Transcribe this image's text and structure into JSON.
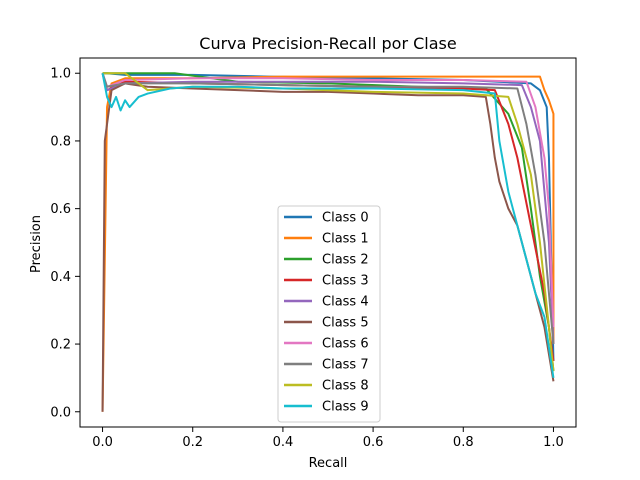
{
  "chart_data": {
    "type": "line",
    "title": "Curva Precision-Recall por Clase",
    "xlabel": "Recall",
    "ylabel": "Precision",
    "xlim": [
      -0.05,
      1.05
    ],
    "ylim": [
      -0.045,
      1.045
    ],
    "xticks": [
      0.0,
      0.2,
      0.4,
      0.6,
      0.8,
      1.0
    ],
    "xtick_labels": [
      "0.0",
      "0.2",
      "0.4",
      "0.6",
      "0.8",
      "1.0"
    ],
    "yticks": [
      0.0,
      0.2,
      0.4,
      0.6,
      0.8,
      1.0
    ],
    "ytick_labels": [
      "0.0",
      "0.2",
      "0.4",
      "0.6",
      "0.8",
      "1.0"
    ],
    "grid": false,
    "legend_position": "lower-center",
    "series": [
      {
        "name": "Class 0",
        "color": "#1f77b4",
        "x": [
          0.0,
          0.01,
          0.05,
          0.2,
          0.37,
          0.6,
          0.8,
          0.95,
          0.97,
          0.985,
          0.99,
          1.0
        ],
        "y": [
          1.0,
          1.0,
          0.995,
          0.995,
          0.99,
          0.985,
          0.98,
          0.97,
          0.95,
          0.9,
          0.75,
          0.15
        ]
      },
      {
        "name": "Class 1",
        "color": "#ff7f0e",
        "x": [
          0.0,
          0.01,
          0.02,
          0.05,
          0.2,
          0.4,
          0.6,
          0.8,
          0.9,
          0.97,
          0.98,
          0.99,
          1.0,
          1.0
        ],
        "y": [
          0.0,
          0.9,
          0.97,
          0.985,
          0.985,
          0.99,
          0.99,
          0.99,
          0.99,
          0.99,
          0.95,
          0.92,
          0.88,
          0.2
        ]
      },
      {
        "name": "Class 2",
        "color": "#2ca02c",
        "x": [
          0.0,
          0.02,
          0.05,
          0.16,
          0.3,
          0.5,
          0.7,
          0.85,
          0.9,
          0.93,
          0.95,
          0.97,
          0.99,
          1.0
        ],
        "y": [
          1.0,
          1.0,
          1.0,
          1.0,
          0.975,
          0.97,
          0.96,
          0.955,
          0.88,
          0.78,
          0.6,
          0.4,
          0.25,
          0.12
        ]
      },
      {
        "name": "Class 3",
        "color": "#d62728",
        "x": [
          0.0,
          0.01,
          0.05,
          0.2,
          0.4,
          0.6,
          0.8,
          0.87,
          0.9,
          0.92,
          0.95,
          0.98,
          1.0
        ],
        "y": [
          1.0,
          0.95,
          0.975,
          0.97,
          0.965,
          0.96,
          0.955,
          0.95,
          0.85,
          0.75,
          0.55,
          0.35,
          0.15
        ]
      },
      {
        "name": "Class 4",
        "color": "#9467bd",
        "x": [
          0.0,
          0.01,
          0.05,
          0.2,
          0.4,
          0.6,
          0.8,
          0.93,
          0.95,
          0.97,
          0.99,
          1.0
        ],
        "y": [
          1.0,
          0.95,
          0.97,
          0.975,
          0.975,
          0.975,
          0.97,
          0.965,
          0.9,
          0.8,
          0.5,
          0.2
        ]
      },
      {
        "name": "Class 5",
        "color": "#8c564b",
        "x": [
          0.0,
          0.005,
          0.01,
          0.02,
          0.05,
          0.1,
          0.2,
          0.3,
          0.4,
          0.5,
          0.6,
          0.7,
          0.8,
          0.85,
          0.86,
          0.87,
          0.88,
          0.9,
          0.92,
          0.94,
          0.96,
          0.98,
          1.0
        ],
        "y": [
          0.0,
          0.8,
          0.85,
          0.95,
          0.97,
          0.96,
          0.955,
          0.95,
          0.945,
          0.945,
          0.94,
          0.935,
          0.935,
          0.93,
          0.85,
          0.75,
          0.68,
          0.6,
          0.55,
          0.45,
          0.35,
          0.25,
          0.09
        ]
      },
      {
        "name": "Class 6",
        "color": "#e377c2",
        "x": [
          0.0,
          0.01,
          0.05,
          0.2,
          0.4,
          0.6,
          0.8,
          0.94,
          0.96,
          0.98,
          0.99,
          1.0
        ],
        "y": [
          1.0,
          0.96,
          0.98,
          0.985,
          0.985,
          0.98,
          0.98,
          0.975,
          0.9,
          0.75,
          0.6,
          0.25
        ]
      },
      {
        "name": "Class 7",
        "color": "#7f7f7f",
        "x": [
          0.0,
          0.01,
          0.05,
          0.2,
          0.4,
          0.6,
          0.8,
          0.92,
          0.94,
          0.96,
          0.98,
          1.0
        ],
        "y": [
          1.0,
          0.96,
          0.97,
          0.97,
          0.965,
          0.96,
          0.96,
          0.955,
          0.85,
          0.7,
          0.5,
          0.2
        ]
      },
      {
        "name": "Class 8",
        "color": "#bcbd22",
        "x": [
          0.0,
          0.01,
          0.05,
          0.1,
          0.2,
          0.4,
          0.6,
          0.8,
          0.9,
          0.92,
          0.95,
          0.97,
          0.99,
          1.0
        ],
        "y": [
          1.0,
          1.0,
          1.0,
          0.95,
          0.96,
          0.955,
          0.945,
          0.94,
          0.93,
          0.85,
          0.7,
          0.5,
          0.25,
          0.12
        ]
      },
      {
        "name": "Class 9",
        "color": "#17becf",
        "x": [
          0.0,
          0.01,
          0.02,
          0.03,
          0.04,
          0.05,
          0.06,
          0.08,
          0.1,
          0.15,
          0.2,
          0.3,
          0.4,
          0.6,
          0.8,
          0.87,
          0.88,
          0.9,
          0.92,
          0.94,
          0.96,
          0.98,
          1.0
        ],
        "y": [
          1.0,
          0.93,
          0.9,
          0.93,
          0.89,
          0.92,
          0.9,
          0.93,
          0.94,
          0.955,
          0.96,
          0.96,
          0.955,
          0.955,
          0.95,
          0.94,
          0.8,
          0.65,
          0.55,
          0.45,
          0.35,
          0.28,
          0.1
        ]
      }
    ]
  }
}
